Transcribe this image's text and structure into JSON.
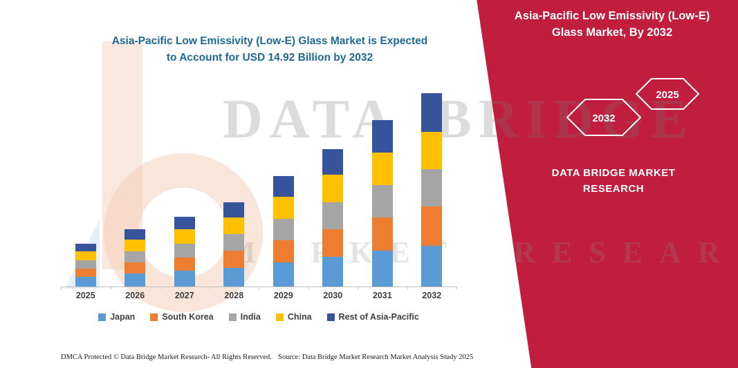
{
  "chart": {
    "title_line1": "Asia-Pacific Low Emissivity (Low-E) Glass Market is Expected",
    "title_line2": "to Account for USD 14.92 Billion by 2032",
    "title_color": "#1D6A96"
  },
  "chart_data": {
    "type": "bar",
    "stacked": true,
    "title": "Asia-Pacific Low Emissivity (Low-E) Glass Market is Expected to Account for USD 14.92 Billion by 2032",
    "unit": "USD Billion",
    "categories": [
      "2025",
      "2026",
      "2027",
      "2028",
      "2029",
      "2030",
      "2031",
      "2032"
    ],
    "series": [
      {
        "name": "Japan",
        "color": "#5B9BD5",
        "values": [
          0.75,
          1.0,
          1.2,
          1.45,
          1.85,
          2.3,
          2.75,
          3.15
        ]
      },
      {
        "name": "South Korea",
        "color": "#ED7D31",
        "values": [
          0.65,
          0.85,
          1.05,
          1.3,
          1.7,
          2.1,
          2.55,
          3.05
        ]
      },
      {
        "name": "India",
        "color": "#A5A5A5",
        "values": [
          0.65,
          0.85,
          1.05,
          1.3,
          1.65,
          2.1,
          2.5,
          2.85
        ]
      },
      {
        "name": "China",
        "color": "#FFC000",
        "values": [
          0.65,
          0.9,
          1.1,
          1.3,
          1.7,
          2.1,
          2.5,
          2.85
        ]
      },
      {
        "name": "Rest of Asia-Pacific",
        "color": "#35549B",
        "values": [
          0.6,
          0.8,
          1.0,
          1.15,
          1.6,
          2.0,
          2.5,
          3.02
        ]
      }
    ],
    "totals": [
      3.3,
      4.4,
      5.4,
      6.5,
      8.5,
      10.6,
      12.8,
      14.92
    ],
    "ylim": [
      0,
      16
    ],
    "grid": false,
    "legend_position": "bottom",
    "annotation": "USD 14.92 Billion by 2032"
  },
  "banner": {
    "color": "#C01E3C",
    "title": "Asia-Pacific Low Emissivity (Low-E) Glass Market, By 2032",
    "hexagons": [
      "2032",
      "2025"
    ],
    "brand": "DATA BRIDGE MARKET RESEARCH"
  },
  "watermark": {
    "line1": "DATA BRIDGE",
    "line2": "MARKET RESEARCH"
  },
  "footer": {
    "left": "DMCA Protected © Data Bridge Market Research-  All Rights Reserved.",
    "right": "Source: Data Bridge Market Research  Market Analysis Study 2025"
  }
}
